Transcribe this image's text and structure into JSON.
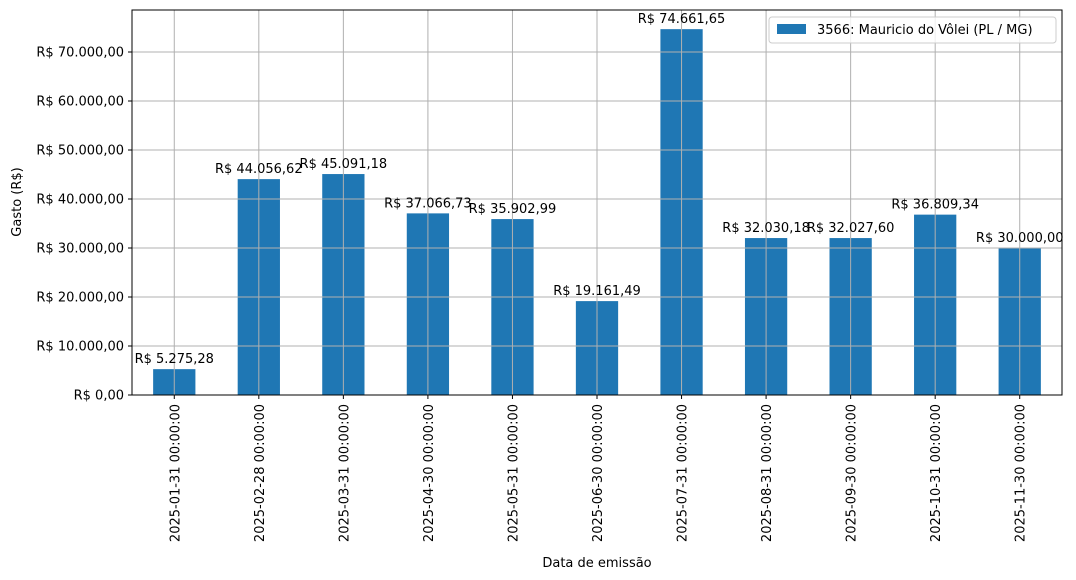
{
  "chart_data": {
    "type": "bar",
    "title": "",
    "xlabel": "Data de emissão",
    "ylabel": "Gasto (R$)",
    "ylim": [
      0,
      78500
    ],
    "grid": true,
    "legend_position": "upper right",
    "bar_color": "#1f77b4",
    "categories": [
      "2025-01-31 00:00:00",
      "2025-02-28 00:00:00",
      "2025-03-31 00:00:00",
      "2025-04-30 00:00:00",
      "2025-05-31 00:00:00",
      "2025-06-30 00:00:00",
      "2025-07-31 00:00:00",
      "2025-08-31 00:00:00",
      "2025-09-30 00:00:00",
      "2025-10-31 00:00:00",
      "2025-11-30 00:00:00"
    ],
    "series": [
      {
        "name": "3566: Mauricio do Vôlei (PL / MG)",
        "values": [
          5275.28,
          44056.62,
          45091.18,
          37066.73,
          35902.99,
          19161.49,
          74661.65,
          32030.18,
          32027.6,
          36809.34,
          30000.0
        ],
        "value_labels": [
          "R$ 5.275,28",
          "R$ 44.056,62",
          "R$ 45.091,18",
          "R$ 37.066,73",
          "R$ 35.902,99",
          "R$ 19.161,49",
          "R$ 74.661,65",
          "R$ 32.030,18",
          "R$ 32.027,60",
          "R$ 36.809,34",
          "R$ 30.000,00"
        ]
      }
    ],
    "yticks": [
      0,
      10000,
      20000,
      30000,
      40000,
      50000,
      60000,
      70000
    ],
    "ytick_labels": [
      "R$ 0,00",
      "R$ 10.000,00",
      "R$ 20.000,00",
      "R$ 30.000,00",
      "R$ 40.000,00",
      "R$ 50.000,00",
      "R$ 60.000,00",
      "R$ 70.000,00"
    ]
  }
}
